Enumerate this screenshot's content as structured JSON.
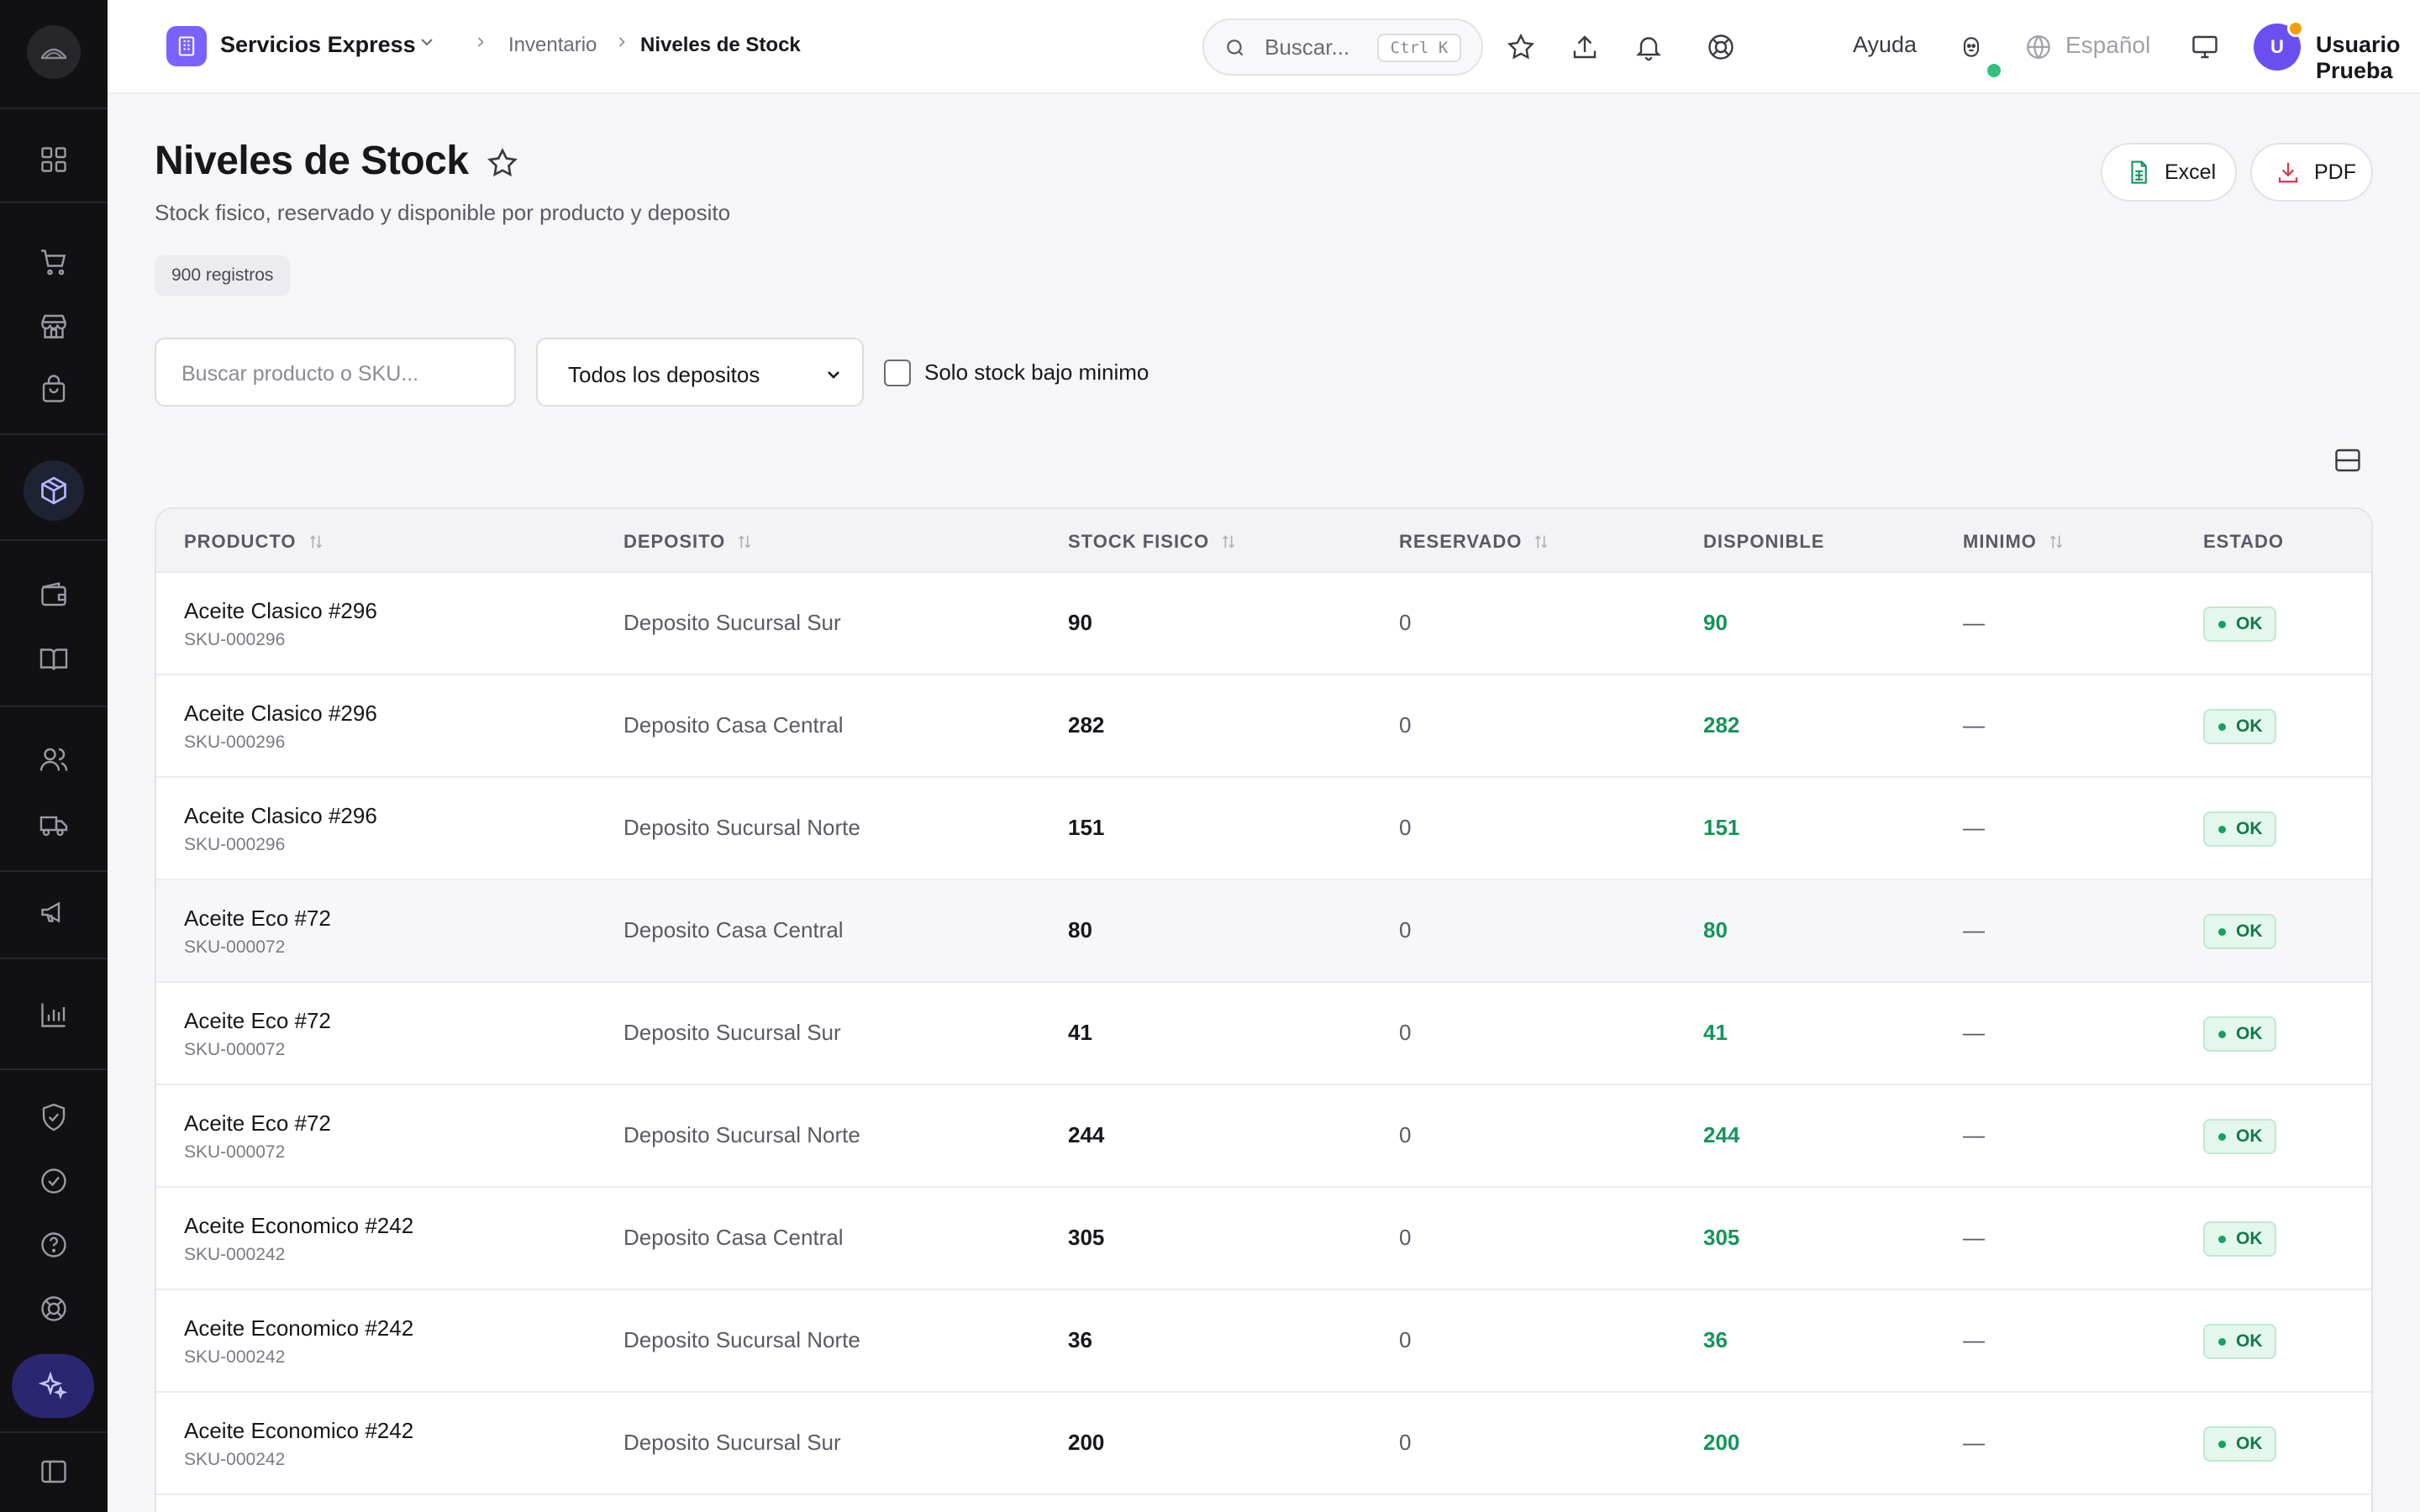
{
  "app": {
    "name": "Servicios Express",
    "breadcrumb": [
      "Inventario",
      "Niveles de Stock"
    ]
  },
  "topbar": {
    "search_placeholder": "Buscar...",
    "search_shortcut": "Ctrl K",
    "help_label": "Ayuda",
    "language_label": "Español",
    "user_initial": "U",
    "user_name": "Usuario Prueba"
  },
  "page": {
    "title": "Niveles de Stock",
    "subtitle": "Stock fisico, reservado y disponible por producto y deposito",
    "record_count": "900 registros",
    "export_excel": "Excel",
    "export_pdf": "PDF"
  },
  "filters": {
    "search_placeholder": "Buscar producto o SKU...",
    "deposit_selected": "Todos los depositos",
    "low_stock_label": "Solo stock bajo minimo",
    "low_stock_checked": false
  },
  "table": {
    "columns": [
      "PRODUCTO",
      "DEPOSITO",
      "STOCK FISICO",
      "RESERVADO",
      "DISPONIBLE",
      "MINIMO",
      "ESTADO"
    ],
    "rows": [
      {
        "product": "Aceite Clasico #296",
        "sku": "SKU-000296",
        "deposit": "Deposito Sucursal Sur",
        "physical": "90",
        "reserved": "0",
        "available": "90",
        "minimum": "—",
        "status": "OK"
      },
      {
        "product": "Aceite Clasico #296",
        "sku": "SKU-000296",
        "deposit": "Deposito Casa Central",
        "physical": "282",
        "reserved": "0",
        "available": "282",
        "minimum": "—",
        "status": "OK"
      },
      {
        "product": "Aceite Clasico #296",
        "sku": "SKU-000296",
        "deposit": "Deposito Sucursal Norte",
        "physical": "151",
        "reserved": "0",
        "available": "151",
        "minimum": "—",
        "status": "OK"
      },
      {
        "product": "Aceite Eco #72",
        "sku": "SKU-000072",
        "deposit": "Deposito Casa Central",
        "physical": "80",
        "reserved": "0",
        "available": "80",
        "minimum": "—",
        "status": "OK"
      },
      {
        "product": "Aceite Eco #72",
        "sku": "SKU-000072",
        "deposit": "Deposito Sucursal Sur",
        "physical": "41",
        "reserved": "0",
        "available": "41",
        "minimum": "—",
        "status": "OK"
      },
      {
        "product": "Aceite Eco #72",
        "sku": "SKU-000072",
        "deposit": "Deposito Sucursal Norte",
        "physical": "244",
        "reserved": "0",
        "available": "244",
        "minimum": "—",
        "status": "OK"
      },
      {
        "product": "Aceite Economico #242",
        "sku": "SKU-000242",
        "deposit": "Deposito Casa Central",
        "physical": "305",
        "reserved": "0",
        "available": "305",
        "minimum": "—",
        "status": "OK"
      },
      {
        "product": "Aceite Economico #242",
        "sku": "SKU-000242",
        "deposit": "Deposito Sucursal Norte",
        "physical": "36",
        "reserved": "0",
        "available": "36",
        "minimum": "—",
        "status": "OK"
      },
      {
        "product": "Aceite Economico #242",
        "sku": "SKU-000242",
        "deposit": "Deposito Sucursal Sur",
        "physical": "200",
        "reserved": "0",
        "available": "200",
        "minimum": "—",
        "status": "OK"
      }
    ]
  },
  "colors": {
    "accent": "#7b61ff",
    "sidebar": "#111114",
    "available_text": "#15945b",
    "status_ok_bg": "#e4f7ec"
  }
}
